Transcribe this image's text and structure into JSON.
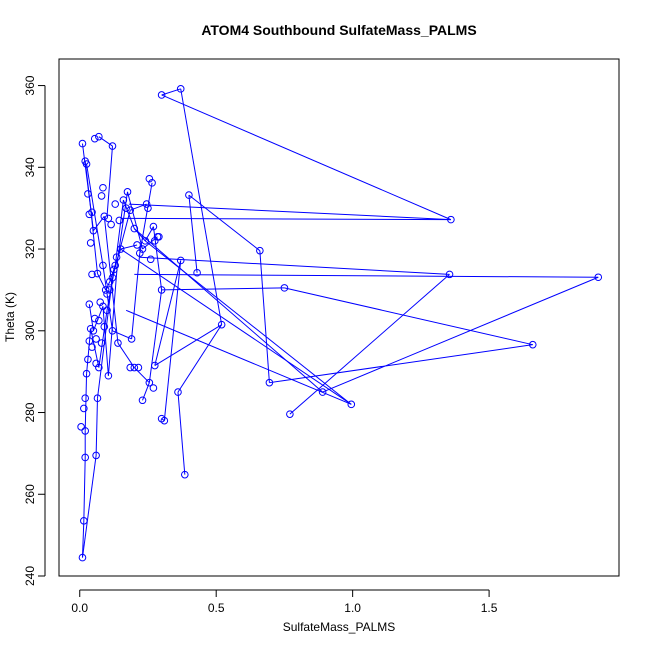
{
  "chart_data": {
    "type": "scatter",
    "title": "ATOM4 Southbound SulfateMass_PALMS",
    "xlabel": "SulfateMass_PALMS",
    "ylabel": "Theta (K)",
    "xlim": [
      -0.076,
      1.976
    ],
    "ylim": [
      240,
      366.5
    ],
    "xticks": [
      0.0,
      0.5,
      1.0,
      1.5
    ],
    "xtick_labels": [
      "0.0",
      "0.5",
      "1.0",
      "1.5"
    ],
    "yticks": [
      240,
      260,
      280,
      300,
      320,
      340,
      360
    ],
    "ytick_labels": [
      "240",
      "260",
      "280",
      "300",
      "320",
      "340",
      "360"
    ],
    "grid": false,
    "legend": "none",
    "color": "#0000ff",
    "marker": "open-circle",
    "connected": true,
    "series": [
      {
        "x": [
          0.01,
          0.02,
          0.015,
          0.03,
          0.01,
          0.02,
          0.04,
          0.03,
          0.06,
          0.05,
          0.08,
          0.07,
          0.1,
          0.09,
          0.12,
          0.11,
          0.14,
          0.13,
          0.16,
          0.15,
          0.18,
          0.17,
          0.2,
          0.19,
          0.22,
          0.21,
          0.25,
          0.24,
          0.28,
          0.27,
          0.02,
          0.03,
          0.05,
          0.04,
          0.07,
          0.06,
          0.09,
          0.08,
          0.11,
          0.1,
          0.13,
          0.12,
          0.15,
          0.14,
          0.17,
          0.16,
          0.19,
          0.18,
          0.21,
          0.2,
          0.24,
          0.23,
          0.27,
          0.26,
          0.3,
          0.37,
          0.52,
          0.36,
          0.46,
          0.4,
          0.66,
          0.7,
          0.75,
          0.89,
          0.99,
          1.36,
          0.77,
          1.36,
          1.9,
          0.3,
          0.26,
          0.27,
          1.66,
          0.7,
          0.3,
          0.31,
          0.39,
          0.02,
          0.43,
          0.04,
          0.05,
          0.06,
          0.07,
          0.08,
          0.09,
          0.1,
          0.11,
          0.12,
          0.13,
          0.14,
          0.15,
          0.16,
          0.17,
          0.18,
          0.19,
          0.2,
          0.21,
          0.22,
          0.23,
          0.24,
          0.025,
          0.035,
          0.045,
          0.055,
          0.065,
          0.075,
          0.085,
          0.095,
          0.105,
          0.115,
          0.125,
          0.135,
          0.145,
          0.155,
          0.165,
          0.175,
          0.185,
          0.195,
          0.205,
          0.215
        ],
        "y": [
          244.5,
          253.5,
          269,
          276,
          281,
          283.5,
          290,
          296,
          300,
          305,
          308,
          311,
          314,
          318,
          320,
          322,
          325,
          327,
          329,
          331,
          333,
          334,
          330,
          327,
          323,
          320,
          317,
          314,
          310,
          306,
          341,
          338,
          336,
          333,
          331,
          329,
          327,
          324,
          322,
          320,
          318,
          316,
          314,
          312,
          310,
          308,
          306,
          304,
          302,
          300,
          298,
          296,
          294,
          292,
          357.5,
          359,
          301.5,
          285,
          314,
          333,
          319.5,
          287,
          310.5,
          285,
          282,
          327,
          279.5,
          313.7,
          313,
          310,
          288.5,
          337,
          296.5,
          287,
          278.5,
          278,
          317,
          346,
          314,
          332.5,
          347,
          347.5,
          335,
          333,
          328,
          330,
          326,
          345,
          331,
          327,
          332,
          334,
          331,
          329,
          325,
          321,
          319,
          322,
          320,
          331,
          275.5,
          293,
          297.5,
          300.5,
          269.5,
          318,
          310,
          305,
          289,
          315,
          296.8,
          313,
          312,
          309,
          291,
          303,
          298,
          291,
          283,
          287
        ],
        "markers": [
          [
            0.01,
            244.5
          ],
          [
            0.015,
            253.5
          ],
          [
            0.02,
            269
          ],
          [
            0.02,
            275.5
          ],
          [
            0.015,
            281
          ],
          [
            0.02,
            283.5
          ],
          [
            0.025,
            289.5
          ],
          [
            0.03,
            293
          ],
          [
            0.035,
            297.5
          ],
          [
            0.04,
            300.5
          ],
          [
            0.005,
            276.5
          ],
          [
            0.06,
            269.5
          ],
          [
            0.065,
            283.5
          ],
          [
            0.07,
            291
          ],
          [
            0.08,
            297
          ],
          [
            0.09,
            301
          ],
          [
            0.1,
            305
          ],
          [
            0.11,
            310
          ],
          [
            0.12,
            313
          ],
          [
            0.13,
            316
          ],
          [
            0.01,
            345.8
          ],
          [
            0.02,
            341.5
          ],
          [
            0.025,
            340.8
          ],
          [
            0.03,
            333.5
          ],
          [
            0.035,
            328.5
          ],
          [
            0.045,
            329
          ],
          [
            0.05,
            324.5
          ],
          [
            0.04,
            321.5
          ],
          [
            0.045,
            313.8
          ],
          [
            0.035,
            306.5
          ],
          [
            0.055,
            347
          ],
          [
            0.07,
            347.5
          ],
          [
            0.085,
            335
          ],
          [
            0.08,
            333
          ],
          [
            0.09,
            328
          ],
          [
            0.105,
            327.5
          ],
          [
            0.12,
            345.2
          ],
          [
            0.115,
            326
          ],
          [
            0.13,
            331
          ],
          [
            0.145,
            327
          ],
          [
            0.16,
            332
          ],
          [
            0.175,
            334
          ],
          [
            0.17,
            330
          ],
          [
            0.185,
            329.5
          ],
          [
            0.2,
            325
          ],
          [
            0.21,
            321
          ],
          [
            0.22,
            319
          ],
          [
            0.24,
            322
          ],
          [
            0.23,
            320
          ],
          [
            0.245,
            331
          ],
          [
            0.255,
            337.2
          ],
          [
            0.265,
            336.2
          ],
          [
            0.25,
            330
          ],
          [
            0.27,
            325.5
          ],
          [
            0.275,
            322
          ],
          [
            0.26,
            317.5
          ],
          [
            0.285,
            323
          ],
          [
            0.29,
            323
          ],
          [
            0.3,
            310
          ],
          [
            0.3,
            357.7
          ],
          [
            0.37,
            359.2
          ],
          [
            0.52,
            301.5
          ],
          [
            0.36,
            285
          ],
          [
            0.43,
            314.2
          ],
          [
            0.4,
            333.2
          ],
          [
            0.66,
            319.6
          ],
          [
            0.695,
            287.3
          ],
          [
            0.75,
            310.5
          ],
          [
            0.89,
            285
          ],
          [
            0.995,
            282
          ],
          [
            1.36,
            327.2
          ],
          [
            0.77,
            279.6
          ],
          [
            1.355,
            313.8
          ],
          [
            1.9,
            313.1
          ],
          [
            1.66,
            296.6
          ],
          [
            0.3,
            278.5
          ],
          [
            0.31,
            278
          ],
          [
            0.385,
            264.8
          ],
          [
            0.37,
            317.2
          ],
          [
            0.255,
            287.3
          ],
          [
            0.27,
            286
          ],
          [
            0.23,
            283
          ],
          [
            0.275,
            291.5
          ],
          [
            0.2,
            291
          ],
          [
            0.185,
            291
          ],
          [
            0.215,
            291
          ],
          [
            0.19,
            298
          ],
          [
            0.14,
            297
          ],
          [
            0.12,
            300
          ],
          [
            0.105,
            289
          ],
          [
            0.095,
            310
          ],
          [
            0.085,
            316
          ],
          [
            0.065,
            314
          ],
          [
            0.075,
            307
          ],
          [
            0.055,
            303
          ],
          [
            0.06,
            298
          ],
          [
            0.045,
            296
          ],
          [
            0.05,
            300
          ],
          [
            0.06,
            292
          ],
          [
            0.07,
            302.5
          ],
          [
            0.085,
            306
          ],
          [
            0.1,
            309
          ],
          [
            0.11,
            312
          ],
          [
            0.125,
            315
          ],
          [
            0.135,
            318
          ],
          [
            0.15,
            320
          ]
        ]
      }
    ],
    "segments": [
      [
        [
          0.01,
          244.5
        ],
        [
          0.015,
          253.5
        ]
      ],
      [
        [
          0.015,
          253.5
        ],
        [
          0.02,
          269
        ]
      ],
      [
        [
          0.02,
          269
        ],
        [
          0.02,
          275.5
        ]
      ],
      [
        [
          0.02,
          275.5
        ],
        [
          0.025,
          289.5
        ]
      ],
      [
        [
          0.025,
          289.5
        ],
        [
          0.04,
          300.5
        ]
      ],
      [
        [
          0.04,
          300.5
        ],
        [
          0.07,
          291
        ]
      ],
      [
        [
          0.07,
          291
        ],
        [
          0.1,
          305
        ]
      ],
      [
        [
          0.1,
          305
        ],
        [
          0.13,
          316
        ]
      ],
      [
        [
          0.13,
          316
        ],
        [
          0.16,
          332
        ]
      ],
      [
        [
          0.16,
          332
        ],
        [
          0.2,
          325
        ]
      ],
      [
        [
          0.2,
          325
        ],
        [
          0.24,
          322
        ]
      ],
      [
        [
          0.24,
          322
        ],
        [
          0.27,
          325.5
        ]
      ],
      [
        [
          0.27,
          325.5
        ],
        [
          0.3,
          310
        ]
      ],
      [
        [
          0.3,
          310
        ],
        [
          0.255,
          287.3
        ]
      ],
      [
        [
          0.255,
          287.3
        ],
        [
          0.23,
          283
        ]
      ],
      [
        [
          0.01,
          244.5
        ],
        [
          0.06,
          269.5
        ]
      ],
      [
        [
          0.06,
          269.5
        ],
        [
          0.065,
          283.5
        ]
      ],
      [
        [
          0.065,
          283.5
        ],
        [
          0.12,
          313
        ]
      ],
      [
        [
          0.12,
          313
        ],
        [
          0.185,
          329.5
        ]
      ],
      [
        [
          0.185,
          329.5
        ],
        [
          0.245,
          331
        ]
      ],
      [
        [
          0.02,
          341.5
        ],
        [
          0.05,
          324.5
        ]
      ],
      [
        [
          0.05,
          324.5
        ],
        [
          0.09,
          328
        ]
      ],
      [
        [
          0.09,
          328
        ],
        [
          0.14,
          297
        ]
      ],
      [
        [
          0.14,
          297
        ],
        [
          0.2,
          291
        ]
      ],
      [
        [
          0.2,
          291
        ],
        [
          0.255,
          287.3
        ]
      ],
      [
        [
          0.025,
          340.8
        ],
        [
          0.085,
          316
        ]
      ],
      [
        [
          0.085,
          316
        ],
        [
          0.12,
          300
        ]
      ],
      [
        [
          0.12,
          300
        ],
        [
          0.19,
          298
        ]
      ],
      [
        [
          0.19,
          298
        ],
        [
          0.22,
          319
        ]
      ],
      [
        [
          0.22,
          319
        ],
        [
          0.265,
          336.2
        ]
      ],
      [
        [
          0.3,
          357.7
        ],
        [
          0.37,
          359.2
        ]
      ],
      [
        [
          0.3,
          357.7
        ],
        [
          1.36,
          327.2
        ]
      ],
      [
        [
          0.37,
          359.2
        ],
        [
          0.52,
          301.5
        ]
      ],
      [
        [
          0.52,
          301.5
        ],
        [
          0.36,
          285
        ]
      ],
      [
        [
          0.52,
          301.5
        ],
        [
          0.275,
          291.5
        ]
      ],
      [
        [
          0.4,
          333.2
        ],
        [
          0.66,
          319.6
        ]
      ],
      [
        [
          0.66,
          319.6
        ],
        [
          0.695,
          287.3
        ]
      ],
      [
        [
          0.695,
          287.3
        ],
        [
          1.66,
          296.6
        ]
      ],
      [
        [
          0.75,
          310.5
        ],
        [
          1.66,
          296.6
        ]
      ],
      [
        [
          0.3,
          310
        ],
        [
          0.75,
          310.5
        ]
      ],
      [
        [
          0.77,
          279.6
        ],
        [
          1.355,
          313.8
        ]
      ],
      [
        [
          0.89,
          285
        ],
        [
          1.9,
          313.1
        ]
      ],
      [
        [
          0.2,
          325
        ],
        [
          0.89,
          285
        ]
      ],
      [
        [
          0.24,
          322
        ],
        [
          0.995,
          282
        ]
      ],
      [
        [
          0.15,
          320
        ],
        [
          0.995,
          282
        ]
      ],
      [
        [
          0.18,
          331
        ],
        [
          1.36,
          327.2
        ]
      ],
      [
        [
          0.15,
          327.5
        ],
        [
          1.36,
          327.2
        ]
      ],
      [
        [
          0.22,
          318
        ],
        [
          1.355,
          313.8
        ]
      ],
      [
        [
          0.2,
          313.8
        ],
        [
          1.9,
          313.1
        ]
      ],
      [
        [
          0.17,
          305
        ],
        [
          0.995,
          282
        ]
      ],
      [
        [
          0.36,
          285
        ],
        [
          0.385,
          264.8
        ]
      ],
      [
        [
          0.3,
          278.5
        ],
        [
          0.31,
          278
        ]
      ],
      [
        [
          0.31,
          278
        ],
        [
          0.37,
          317.2
        ]
      ],
      [
        [
          0.37,
          317.2
        ],
        [
          0.275,
          291.5
        ]
      ],
      [
        [
          0.4,
          333.2
        ],
        [
          0.43,
          314.2
        ]
      ],
      [
        [
          0.07,
          347.5
        ],
        [
          0.12,
          345.2
        ]
      ],
      [
        [
          0.12,
          345.2
        ],
        [
          0.1,
          328
        ]
      ],
      [
        [
          0.01,
          345.8
        ],
        [
          0.04,
          330
        ]
      ],
      [
        [
          0.04,
          330
        ],
        [
          0.065,
          314
        ]
      ],
      [
        [
          0.065,
          314
        ],
        [
          0.095,
          310
        ]
      ],
      [
        [
          0.095,
          310
        ],
        [
          0.11,
          312
        ]
      ],
      [
        [
          0.11,
          312
        ],
        [
          0.15,
          320
        ]
      ],
      [
        [
          0.15,
          320
        ],
        [
          0.21,
          321
        ]
      ],
      [
        [
          0.035,
          306.5
        ],
        [
          0.05,
          300
        ]
      ],
      [
        [
          0.05,
          300
        ],
        [
          0.085,
          306
        ]
      ],
      [
        [
          0.085,
          306
        ],
        [
          0.105,
          289
        ]
      ],
      [
        [
          0.105,
          289
        ],
        [
          0.14,
          318
        ]
      ],
      [
        [
          0.14,
          318
        ],
        [
          0.175,
          334
        ]
      ],
      [
        [
          0.175,
          334
        ],
        [
          0.23,
          320
        ]
      ],
      [
        [
          0.23,
          320
        ],
        [
          0.285,
          323
        ]
      ]
    ]
  }
}
